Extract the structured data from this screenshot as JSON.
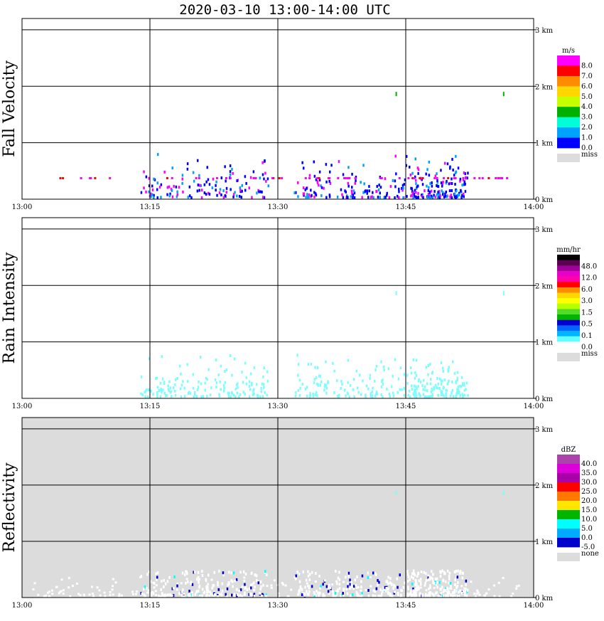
{
  "page": {
    "title": "2020-03-10  13:00-14:00 UTC",
    "x_tick_labels": [
      "13:00",
      "13:15",
      "13:30",
      "13:45",
      "14:00"
    ],
    "y_tick_labels": [
      "0 km",
      "1 km",
      "2 km",
      "3 km"
    ]
  },
  "colors": {
    "grid": "#000000",
    "panel_bg": "#ffffff",
    "missing": "#dcdcdc"
  },
  "chart_data": [
    {
      "type": "heatmap",
      "panel": "fall_velocity",
      "ylabel": "Fall Velocity",
      "xlabel": "",
      "x_range": [
        "13:00",
        "14:00"
      ],
      "ylim": [
        0,
        3.2
      ],
      "y_unit": "km",
      "grid": true,
      "background": "#ffffff",
      "colorbar": {
        "unit": "m/s",
        "labels": [
          "8.0",
          "7.0",
          "6.0",
          "5.0",
          "4.0",
          "3.0",
          "2.0",
          "1.0",
          "0.0"
        ],
        "colors": [
          "#ff00ff",
          "#ff0000",
          "#ff8c00",
          "#ffd700",
          "#c8ff00",
          "#00b000",
          "#00ffd8",
          "#00a0ff",
          "#0000ff"
        ],
        "missing_label": "miss"
      },
      "features": [
        {
          "t": 13.3,
          "z": 0.05,
          "value": 0.5
        },
        {
          "t": 13.4,
          "z": 0.15,
          "value": 0.5
        },
        {
          "t": 13.4,
          "z": 0.3,
          "value": 0.5
        },
        {
          "t": 13.6,
          "z": 0.2,
          "value": 0.5
        },
        {
          "t": 13.7,
          "z": 0.2,
          "value": 0.5
        },
        {
          "t": 13.8,
          "z": 0.2,
          "value": 0.5
        },
        {
          "t": 13.2,
          "z": 0.4,
          "value": 8.0
        },
        {
          "t": 13.5,
          "z": 0.4,
          "value": 8.0
        },
        {
          "t": 13.9,
          "z": 0.4,
          "value": 8.0
        },
        {
          "t": 13.73,
          "z": 1.9,
          "value": 3.5
        },
        {
          "t": 13.94,
          "z": 1.9,
          "value": 3.5
        }
      ]
    },
    {
      "type": "heatmap",
      "panel": "rain_intensity",
      "ylabel": "Rain Intensity",
      "xlabel": "",
      "x_range": [
        "13:00",
        "14:00"
      ],
      "ylim": [
        0,
        3.2
      ],
      "y_unit": "km",
      "grid": true,
      "background": "#ffffff",
      "colorbar": {
        "unit": "mm/hr",
        "labels": [
          "48.0",
          "12.0",
          "6.0",
          "3.0",
          "1.5",
          "0.5",
          "0.1",
          "0.0"
        ],
        "colors": [
          "#000000",
          "#5a0050",
          "#a00096",
          "#e600c8",
          "#ff00aa",
          "#ff0000",
          "#ff8c00",
          "#ffd700",
          "#ffff00",
          "#b4ff00",
          "#50dc28",
          "#00b400",
          "#0000d2",
          "#0064ff",
          "#00b4ff",
          "#64ffff",
          "#ffffff"
        ],
        "missing_label": "miss"
      },
      "features": [
        {
          "t": 13.25,
          "z": 0.3,
          "value": 0.1
        },
        {
          "t": 13.4,
          "z": 0.3,
          "value": 0.1
        },
        {
          "t": 13.6,
          "z": 0.3,
          "value": 0.1
        },
        {
          "t": 13.8,
          "z": 0.3,
          "value": 0.1
        },
        {
          "t": 13.73,
          "z": 1.9,
          "value": 0.1
        },
        {
          "t": 13.94,
          "z": 1.9,
          "value": 0.1
        }
      ]
    },
    {
      "type": "heatmap",
      "panel": "reflectivity",
      "ylabel": "Reflectivity",
      "xlabel": "",
      "x_range": [
        "13:00",
        "14:00"
      ],
      "ylim": [
        0,
        3.2
      ],
      "y_unit": "km",
      "grid": true,
      "background": "#dcdcdc",
      "colorbar": {
        "unit": "dBZ",
        "labels": [
          "40.0",
          "35.0",
          "30.0",
          "25.0",
          "20.0",
          "15.0",
          "10.0",
          "5.0",
          "0.0",
          "-5.0"
        ],
        "colors": [
          "#aa44aa",
          "#dd00dd",
          "#aa00aa",
          "#ff0000",
          "#ff7800",
          "#ffe600",
          "#00b400",
          "#00ffff",
          "#00aaff",
          "#0000cc"
        ],
        "missing_label": "none"
      },
      "features": [
        {
          "t": 13.3,
          "z": 0.2,
          "value": -5.0
        },
        {
          "t": 13.6,
          "z": 0.2,
          "value": -5.0
        },
        {
          "t": 13.8,
          "z": 0.2,
          "value": -5.0
        },
        {
          "t": 13.73,
          "z": 1.9,
          "value": 10.0
        },
        {
          "t": 13.94,
          "z": 1.9,
          "value": 10.0
        }
      ]
    }
  ]
}
